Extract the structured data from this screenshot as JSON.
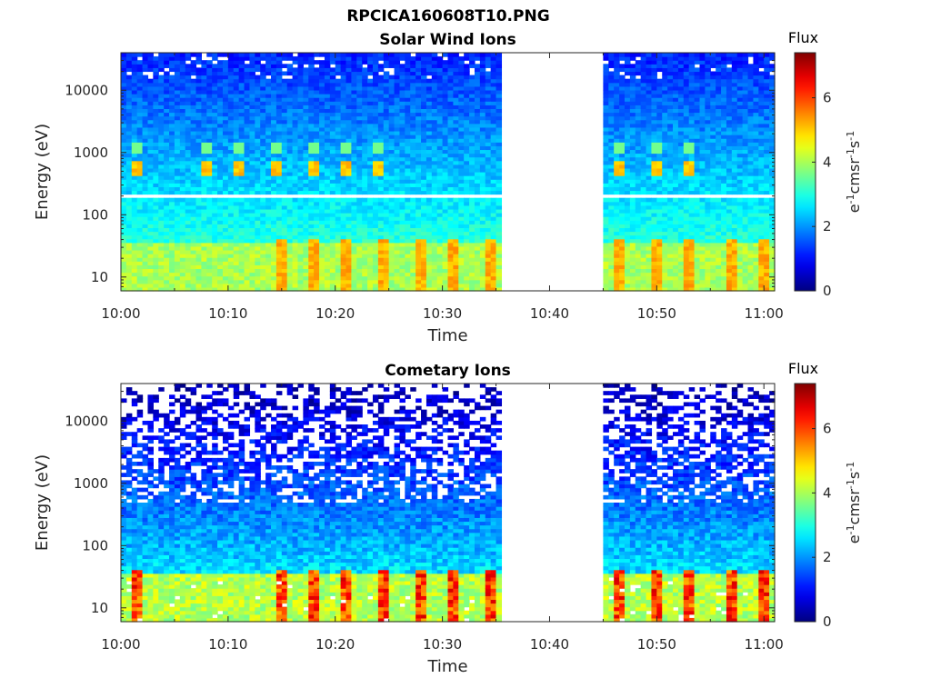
{
  "figure": {
    "title": "RPCICA160608T10.PNG"
  },
  "chart_data": [
    {
      "type": "heatmap",
      "title": "Solar Wind Ions",
      "xlabel": "Time",
      "ylabel": "Energy (eV)",
      "x_ticks": [
        "10:00",
        "10:10",
        "10:20",
        "10:30",
        "10:40",
        "10:50",
        "11:00"
      ],
      "x_range_minutes": [
        0,
        61
      ],
      "y_ticks": [
        "10",
        "100",
        "1000",
        "10000"
      ],
      "y_scale": "log",
      "y_range": [
        6,
        40000
      ],
      "data_gap_minutes": [
        35.5,
        45
      ],
      "colorbar": {
        "title": "Flux",
        "label": "eV-1cm-2sr-1s-1",
        "ticks": [
          "0",
          "2",
          "4",
          "6"
        ],
        "range": [
          0,
          7.4
        ],
        "colormap": "jet"
      },
      "features": {
        "beam_center_eV": 600,
        "beam_times_minutes": [
          1.5,
          8,
          11,
          14.5,
          18,
          21,
          24,
          46.5,
          50,
          53
        ],
        "low_energy_peaks_minutes": [
          15,
          18,
          21,
          24.5,
          28,
          31,
          34.5,
          46.5,
          50,
          53,
          57,
          60
        ],
        "blank_line_eV": 200
      }
    },
    {
      "type": "heatmap",
      "title": "Cometary Ions",
      "xlabel": "Time",
      "ylabel": "Energy (eV)",
      "x_ticks": [
        "10:00",
        "10:10",
        "10:20",
        "10:30",
        "10:40",
        "10:50",
        "11:00"
      ],
      "x_range_minutes": [
        0,
        61
      ],
      "y_ticks": [
        "10",
        "100",
        "1000",
        "10000"
      ],
      "y_scale": "log",
      "y_range": [
        6,
        40000
      ],
      "data_gap_minutes": [
        35.5,
        45
      ],
      "colorbar": {
        "title": "Flux",
        "label": "eV-1cm-2sr-1s-1",
        "ticks": [
          "0",
          "2",
          "4",
          "6"
        ],
        "range": [
          0,
          7.4
        ],
        "colormap": "jet"
      },
      "features": {
        "low_energy_peaks_minutes": [
          1.5,
          15,
          18,
          21,
          24.5,
          28,
          31,
          34.5,
          46.5,
          50,
          53,
          57,
          60
        ],
        "peak_flux": 6.8
      }
    }
  ]
}
